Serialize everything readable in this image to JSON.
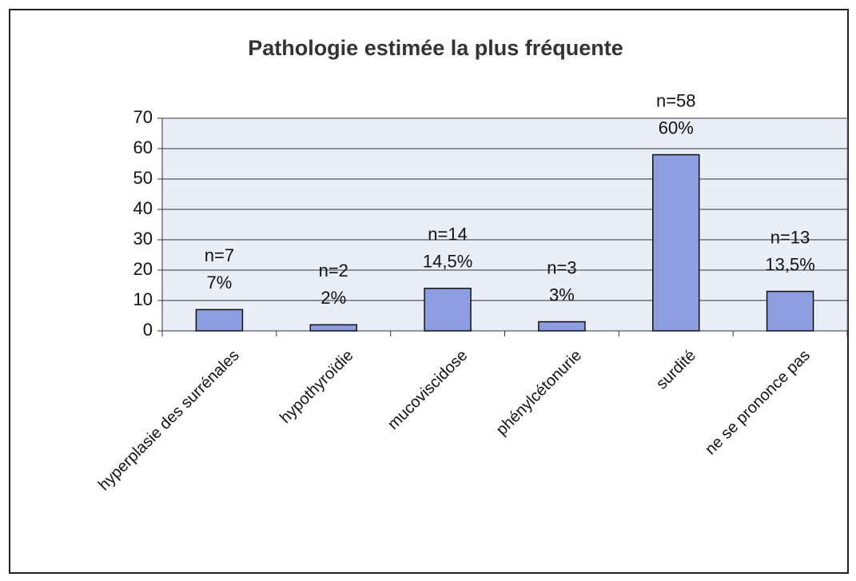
{
  "chart_data": {
    "type": "bar",
    "title": "Pathologie estimée la plus fréquente",
    "categories": [
      "hyperplasie des surrénales",
      "hypothyroïdie",
      "mucoviscidose",
      "phénylcétonurie",
      "surdité",
      "ne se prononce pas"
    ],
    "values": [
      7,
      2,
      14,
      3,
      58,
      13
    ],
    "value_labels": [
      "n=7",
      "n=2",
      "n=14",
      "n=3",
      "n=58",
      "n=13"
    ],
    "percentages": {
      "values": [
        7,
        2,
        14.5,
        3,
        60,
        13.5
      ],
      "value_labels": [
        "7%",
        "2%",
        "14,5%",
        "3%",
        "60%",
        "13,5%"
      ]
    },
    "color": "#8c9ee0",
    "ylim": [
      0,
      70
    ],
    "yticks": [
      0,
      10,
      20,
      30,
      40,
      50,
      60,
      70
    ],
    "grid": true
  }
}
